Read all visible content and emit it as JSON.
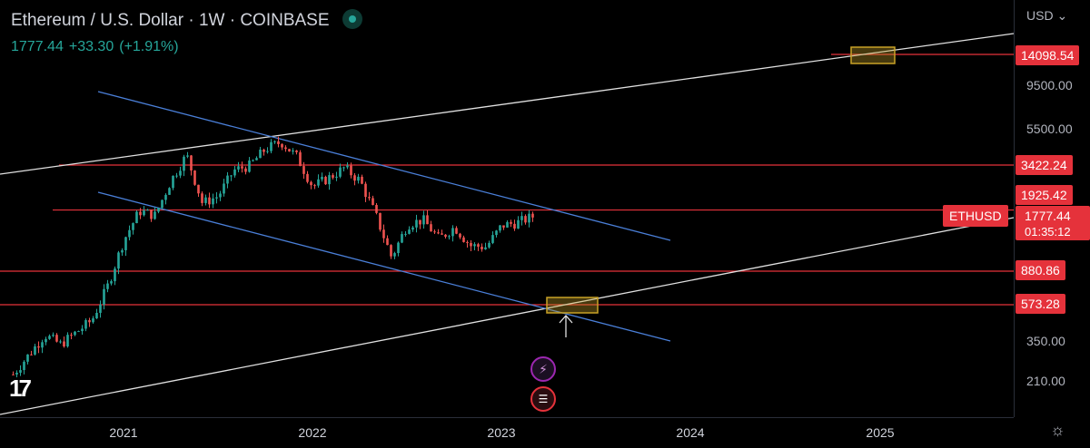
{
  "header": {
    "title": "Ethereum / U.S. Dollar · 1W · COINBASE",
    "last_price": "1777.44",
    "change": "+33.30",
    "change_pct": "(+1.91%)"
  },
  "axis": {
    "currency": "USD",
    "y_ticks": [
      "9500.00",
      "5500.00",
      "350.00",
      "210.00"
    ],
    "x_ticks": [
      "2021",
      "2022",
      "2023",
      "2024",
      "2025"
    ]
  },
  "price_tags": {
    "level_1": "14098.54",
    "level_2": "3422.24",
    "level_3": "1925.42",
    "level_4": "880.86",
    "level_5": "573.28",
    "current": "1777.44",
    "countdown": "01:35:12",
    "symbol": "ETHUSD"
  },
  "colors": {
    "up": "#26a69a",
    "down": "#ef5350",
    "level_line": "#e5323b",
    "channel": "#4a7fd8",
    "trend": "#e0e0e0",
    "target_box": "#c9a227"
  },
  "icons": {
    "event_1": "lightning-icon",
    "event_2": "us-flag-icon",
    "settings": "gear-icon",
    "logo": "tradingview-logo"
  },
  "chart_data": {
    "type": "candlestick",
    "symbol": "ETHUSD",
    "interval": "1W",
    "exchange": "COINBASE",
    "y_scale": "log",
    "ylim": [
      150,
      20000
    ],
    "xlim": [
      "2020-06",
      "2025-10"
    ],
    "horizontal_levels": [
      14098.54,
      3422.24,
      1925.42,
      880.86,
      573.28
    ],
    "last_price": 1777.44,
    "price_path": [
      [
        "2020-06",
        235
      ],
      [
        "2020-08",
        390
      ],
      [
        "2020-09",
        345
      ],
      [
        "2020-11",
        470
      ],
      [
        "2020-12",
        730
      ],
      [
        "2021-01",
        1300
      ],
      [
        "2021-02",
        1900
      ],
      [
        "2021-03",
        1800
      ],
      [
        "2021-04",
        2800
      ],
      [
        "2021-05",
        3900
      ],
      [
        "2021-06",
        2100
      ],
      [
        "2021-07",
        2300
      ],
      [
        "2021-08",
        3200
      ],
      [
        "2021-09",
        3400
      ],
      [
        "2021-10",
        4200
      ],
      [
        "2021-11",
        4600
      ],
      [
        "2021-12",
        3800
      ],
      [
        "2022-01",
        2600
      ],
      [
        "2022-02",
        2900
      ],
      [
        "2022-03",
        3300
      ],
      [
        "2022-04",
        2800
      ],
      [
        "2022-05",
        1800
      ],
      [
        "2022-06",
        1050
      ],
      [
        "2022-07",
        1600
      ],
      [
        "2022-08",
        1700
      ],
      [
        "2022-09",
        1330
      ],
      [
        "2022-10",
        1550
      ],
      [
        "2022-11",
        1220
      ],
      [
        "2022-12",
        1200
      ],
      [
        "2023-01",
        1580
      ],
      [
        "2023-02",
        1640
      ],
      [
        "2023-03",
        1777
      ]
    ]
  }
}
